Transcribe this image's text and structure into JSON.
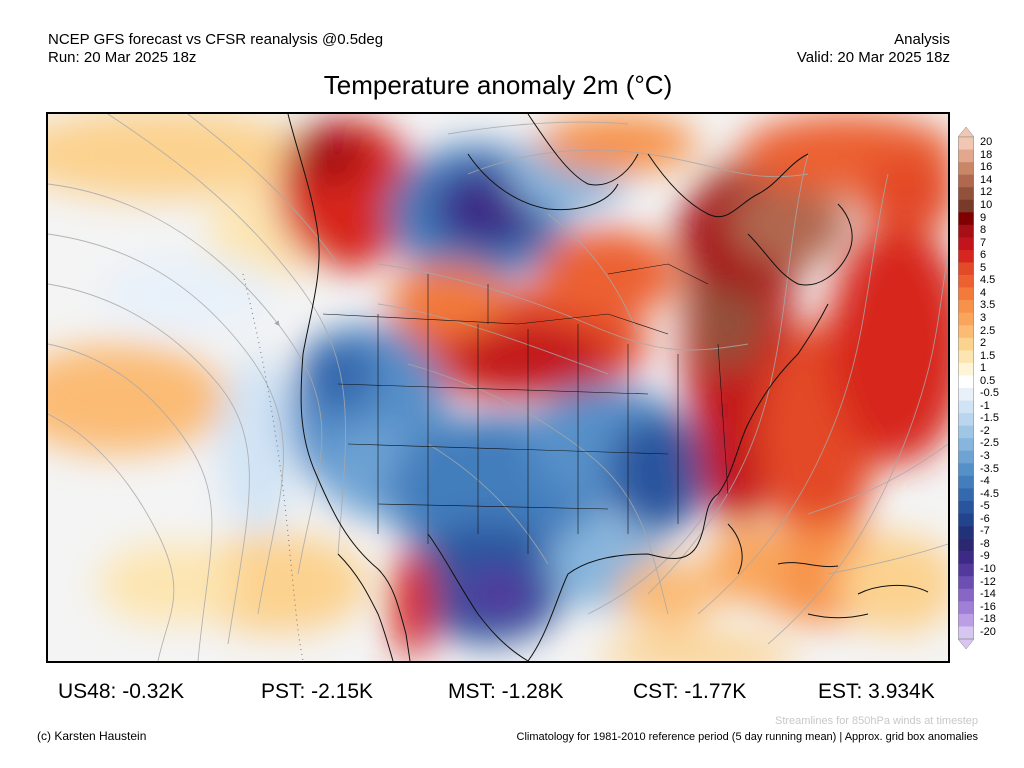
{
  "header": {
    "model_line": "NCEP GFS forecast vs CFSR reanalysis @0.5deg",
    "run_line": "Run: 20 Mar 2025 18z",
    "analysis_label": "Analysis",
    "valid_line": "Valid: 20 Mar 2025 18z"
  },
  "title": "Temperature anomaly 2m (°C)",
  "map": {
    "region": "North America",
    "features": [
      "coastlines",
      "state-borders",
      "850hPa-streamlines",
      "anomaly-shading"
    ]
  },
  "colorbar": {
    "labels": [
      "20",
      "18",
      "16",
      "14",
      "12",
      "10",
      "9",
      "8",
      "7",
      "6",
      "5",
      "4.5",
      "4",
      "3.5",
      "3",
      "2.5",
      "2",
      "1.5",
      "1",
      "0.5",
      "-0.5",
      "-1",
      "-1.5",
      "-2",
      "-2.5",
      "-3",
      "-3.5",
      "-4",
      "-4.5",
      "-5",
      "-6",
      "-7",
      "-8",
      "-9",
      "-10",
      "-12",
      "-14",
      "-16",
      "-18",
      "-20"
    ],
    "colors": [
      "#f1c7b3",
      "#e3a78d",
      "#c98768",
      "#b0684f",
      "#92513b",
      "#7a3a2a",
      "#800000",
      "#a50f15",
      "#c2141c",
      "#d7261f",
      "#e34a27",
      "#ec6032",
      "#f37a3b",
      "#f7924a",
      "#f9a65c",
      "#fbbb74",
      "#fcd28f",
      "#fde5b1",
      "#fef4d6",
      "#ffffff",
      "#e8f1fa",
      "#d1e4f5",
      "#b9d6ee",
      "#a0c6e6",
      "#86b5dd",
      "#6ea3d4",
      "#5690c9",
      "#437dbc",
      "#3569ae",
      "#2a559e",
      "#21448c",
      "#22327a",
      "#2b2771",
      "#3c2a86",
      "#54399d",
      "#6d4fb3",
      "#8766c6",
      "#a07fd6",
      "#bb9ee4",
      "#d8c6f2"
    ]
  },
  "stats": [
    {
      "label": "US48: -0.32K"
    },
    {
      "label": "PST: -2.15K"
    },
    {
      "label": "MST: -1.28K"
    },
    {
      "label": "CST: -1.77K"
    },
    {
      "label": "EST: 3.934K"
    }
  ],
  "footer": {
    "copyright": "(c) Karsten Haustein",
    "streamline_note": "Streamlines for 850hPa winds at timestep",
    "climatology_note": "Climatology for 1981-2010 reference period (5 day running mean) | Approx. grid box anomalies"
  }
}
